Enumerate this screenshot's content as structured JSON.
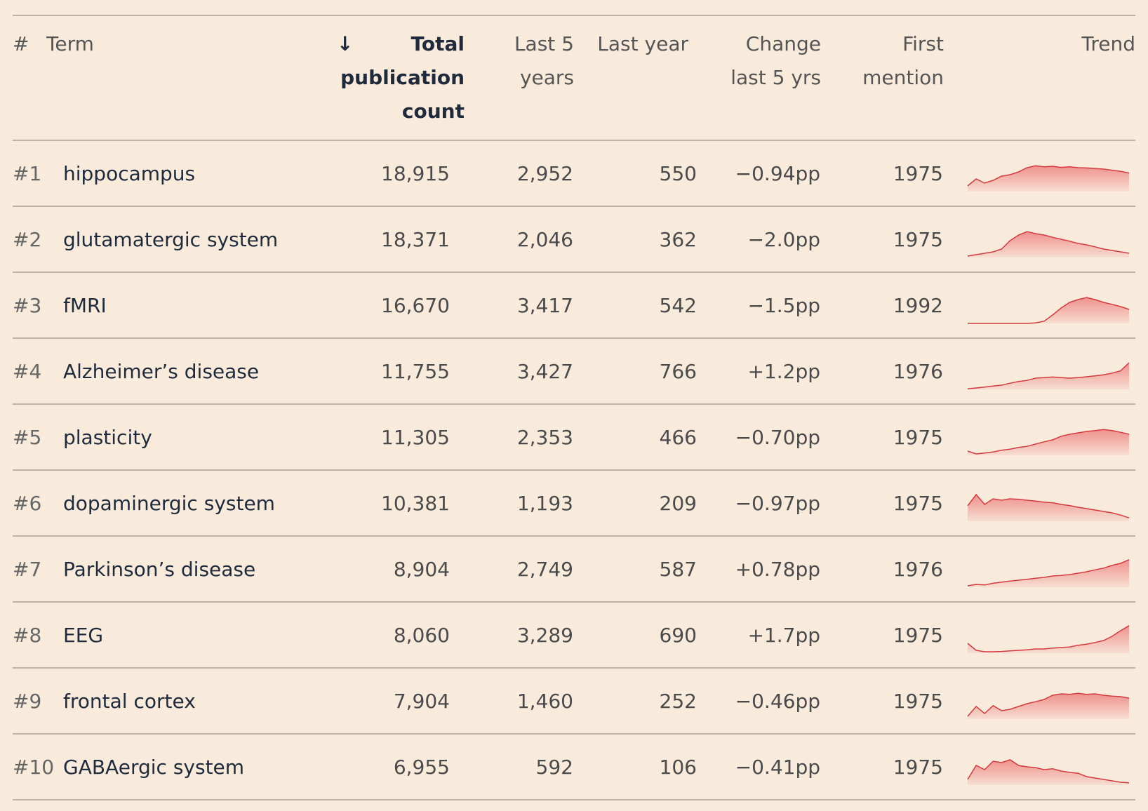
{
  "header": {
    "rank": "#",
    "term": "Term",
    "sort_indicator": "↓",
    "total": "Total publication count",
    "last5": "Last 5 years",
    "last_year": "Last year",
    "change": "Change last 5 yrs",
    "first": "First mention",
    "trend": "Trend"
  },
  "rows": [
    {
      "rank": "#1",
      "term": "hippocampus",
      "total": "18,915",
      "last5": "2,952",
      "last_year": "550",
      "change": "−0.94pp",
      "first": "1975",
      "trend": [
        20,
        45,
        30,
        40,
        55,
        60,
        70,
        85,
        92,
        88,
        90,
        86,
        88,
        85,
        84,
        82,
        80,
        76,
        72,
        66
      ]
    },
    {
      "rank": "#2",
      "term": "glutamatergic system",
      "total": "18,371",
      "last5": "2,046",
      "last_year": "362",
      "change": "−2.0pp",
      "first": "1975",
      "trend": [
        5,
        10,
        15,
        20,
        30,
        60,
        80,
        92,
        85,
        80,
        72,
        65,
        58,
        50,
        45,
        38,
        30,
        25,
        20,
        15
      ]
    },
    {
      "rank": "#3",
      "term": "fMRI",
      "total": "16,670",
      "last5": "3,417",
      "last_year": "542",
      "change": "−1.5pp",
      "first": "1992",
      "trend": [
        0,
        0,
        0,
        0,
        0,
        0,
        0,
        0,
        2,
        8,
        30,
        55,
        75,
        85,
        92,
        85,
        75,
        68,
        60,
        50
      ]
    },
    {
      "rank": "#4",
      "term": "Alzheimer’s disease",
      "total": "11,755",
      "last5": "3,427",
      "last_year": "766",
      "change": "+1.2pp",
      "first": "1976",
      "trend": [
        2,
        5,
        8,
        12,
        15,
        22,
        28,
        32,
        40,
        42,
        44,
        42,
        40,
        42,
        45,
        48,
        52,
        58,
        66,
        95
      ]
    },
    {
      "rank": "#5",
      "term": "plasticity",
      "total": "11,305",
      "last5": "2,353",
      "last_year": "466",
      "change": "−0.70pp",
      "first": "1975",
      "trend": [
        15,
        5,
        8,
        12,
        18,
        22,
        28,
        32,
        40,
        48,
        55,
        68,
        75,
        80,
        85,
        88,
        92,
        88,
        82,
        75
      ]
    },
    {
      "rank": "#6",
      "term": "dopaminergic system",
      "total": "10,381",
      "last5": "1,193",
      "last_year": "209",
      "change": "−0.97pp",
      "first": "1975",
      "trend": [
        55,
        95,
        60,
        80,
        75,
        80,
        78,
        75,
        72,
        68,
        66,
        60,
        56,
        50,
        45,
        40,
        35,
        30,
        22,
        12
      ]
    },
    {
      "rank": "#7",
      "term": "Parkinson’s disease",
      "total": "8,904",
      "last5": "2,749",
      "last_year": "587",
      "change": "+0.78pp",
      "first": "1976",
      "trend": [
        5,
        10,
        8,
        14,
        18,
        22,
        25,
        28,
        32,
        35,
        40,
        42,
        45,
        50,
        55,
        62,
        68,
        78,
        85,
        98
      ]
    },
    {
      "rank": "#8",
      "term": "EEG",
      "total": "8,060",
      "last5": "3,289",
      "last_year": "690",
      "change": "+1.7pp",
      "first": "1975",
      "trend": [
        35,
        10,
        5,
        5,
        6,
        8,
        10,
        12,
        15,
        15,
        18,
        20,
        22,
        28,
        32,
        38,
        45,
        60,
        80,
        98
      ]
    },
    {
      "rank": "#9",
      "term": "frontal cortex",
      "total": "7,904",
      "last5": "1,460",
      "last_year": "252",
      "change": "−0.46pp",
      "first": "1975",
      "trend": [
        10,
        45,
        20,
        48,
        30,
        35,
        45,
        55,
        62,
        70,
        85,
        90,
        88,
        92,
        88,
        90,
        85,
        82,
        80,
        75
      ]
    },
    {
      "rank": "#10",
      "term": "GABAergic system",
      "total": "6,955",
      "last5": "592",
      "last_year": "106",
      "change": "−0.41pp",
      "first": "1975",
      "trend": [
        20,
        70,
        55,
        85,
        80,
        90,
        70,
        65,
        62,
        55,
        58,
        50,
        45,
        42,
        30,
        25,
        20,
        15,
        10,
        8
      ]
    }
  ]
}
